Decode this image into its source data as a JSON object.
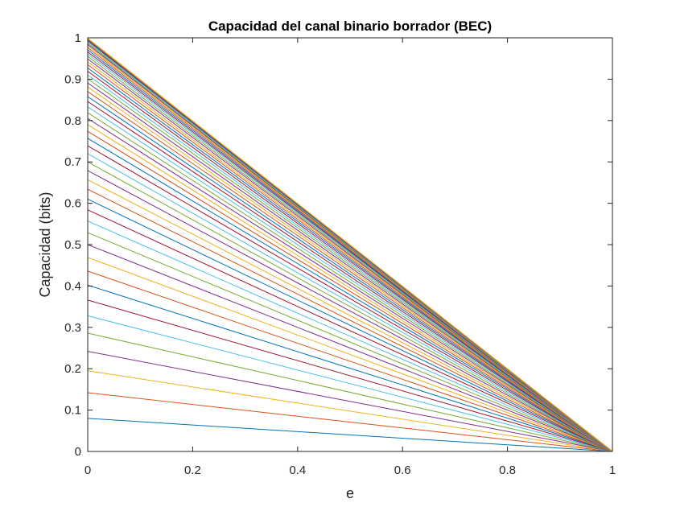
{
  "chart_data": {
    "type": "line",
    "title": "Capacidad del canal binario borrador (BEC)",
    "xlabel": "e",
    "ylabel": "Capacidad (bits)",
    "xlim": [
      0,
      1
    ],
    "ylim": [
      0,
      1
    ],
    "xticks": [
      "0",
      "0.2",
      "0.4",
      "0.6",
      "0.8",
      "1"
    ],
    "yticks": [
      "0",
      "0.1",
      "0.2",
      "0.3",
      "0.4",
      "0.5",
      "0.6",
      "0.7",
      "0.8",
      "0.9",
      "1"
    ],
    "grid": false,
    "legend": "none",
    "series_form": "C = p * (1 - e), straight lines from (0, p) to (1, 0)",
    "intercepts_p": [
      0.08,
      0.142,
      0.195,
      0.242,
      0.286,
      0.328,
      0.366,
      0.402,
      0.436,
      0.469,
      0.5,
      0.529,
      0.557,
      0.584,
      0.61,
      0.634,
      0.657,
      0.679,
      0.7,
      0.72,
      0.739,
      0.757,
      0.774,
      0.79,
      0.805,
      0.819,
      0.833,
      0.846,
      0.858,
      0.87,
      0.881,
      0.891,
      0.901,
      0.91,
      0.919,
      0.927,
      0.935,
      0.942,
      0.949,
      0.955,
      0.961,
      0.966,
      0.971,
      0.976,
      0.98,
      0.984,
      0.987,
      0.99,
      0.993,
      0.995,
      0.997,
      0.999
    ],
    "color_cycle": [
      "#0072BD",
      "#D95319",
      "#EDB120",
      "#7E2F8E",
      "#77AC30",
      "#4DBEEE",
      "#A2142F"
    ]
  }
}
